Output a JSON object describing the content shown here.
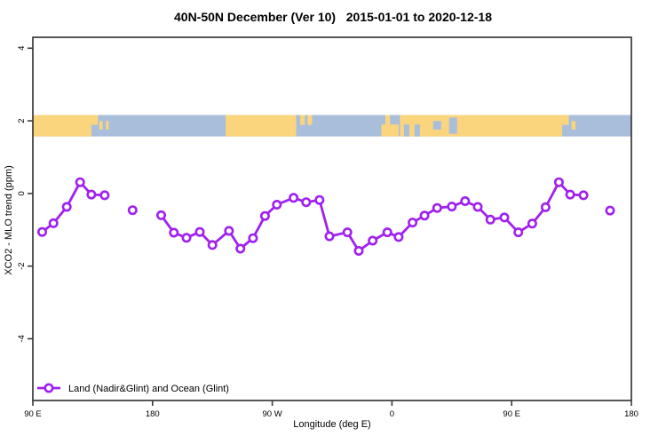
{
  "title": "40N-50N December (Ver 10)   2015-01-01 to 2020-12-18",
  "legend": {
    "label": "Land (Nadir&Glint) and Ocean (Glint)"
  },
  "colors": {
    "line": "#A020F0",
    "marker_fill": "#ffffff",
    "land": "#FAD57E",
    "ocean": "#A9BEDB",
    "axis": "#3a3a3a",
    "text": "#000000"
  },
  "chart_data": {
    "type": "line",
    "title": "40N-50N December (Ver 10)   2015-01-01 to 2020-12-18",
    "xlabel": "Longitude (deg E)",
    "ylabel": "XCO2 - MLO trend (ppm)",
    "xlim": [
      90,
      540
    ],
    "ylim": [
      -5.7,
      4.3
    ],
    "grid": false,
    "legend_position": "bottom-left-inside",
    "x_ticks": [
      {
        "x": 90,
        "label": "90 E"
      },
      {
        "x": 180,
        "label": "180"
      },
      {
        "x": 270,
        "label": "90 W"
      },
      {
        "x": 360,
        "label": "0"
      },
      {
        "x": 450,
        "label": "90 E"
      },
      {
        "x": 540,
        "label": "180"
      }
    ],
    "y_ticks": [
      {
        "y": -4,
        "label": "-4"
      },
      {
        "y": -2,
        "label": "-2"
      },
      {
        "y": 0,
        "label": "0"
      },
      {
        "y": 2,
        "label": "2"
      },
      {
        "y": 4,
        "label": "4"
      }
    ],
    "series": [
      {
        "name": "Land (Nadir&Glint) and Ocean (Glint)",
        "segments": [
          [
            [
              97,
              -1.06
            ],
            [
              105.5,
              -0.82
            ],
            [
              115.5,
              -0.37
            ],
            [
              125.5,
              0.31
            ],
            [
              134,
              -0.03
            ],
            [
              144,
              -0.05
            ]
          ],
          [
            [
              165,
              -0.46
            ]
          ],
          [
            [
              186.5,
              -0.6
            ],
            [
              196,
              -1.08
            ],
            [
              205.5,
              -1.22
            ],
            [
              215.5,
              -1.06
            ],
            [
              225,
              -1.42
            ],
            [
              237.5,
              -1.03
            ],
            [
              246,
              -1.52
            ],
            [
              255.5,
              -1.23
            ],
            [
              264.5,
              -0.62
            ],
            [
              273.5,
              -0.31
            ],
            [
              286,
              -0.12
            ],
            [
              295.5,
              -0.24
            ],
            [
              305.5,
              -0.18
            ],
            [
              313,
              -1.18
            ],
            [
              326.5,
              -1.07
            ],
            [
              335,
              -1.58
            ],
            [
              345.5,
              -1.3
            ],
            [
              356.5,
              -1.07
            ],
            [
              365,
              -1.2
            ],
            [
              375.5,
              -0.8
            ],
            [
              384.5,
              -0.61
            ],
            [
              394,
              -0.4
            ],
            [
              405,
              -0.36
            ],
            [
              415,
              -0.21
            ],
            [
              424.5,
              -0.37
            ],
            [
              434,
              -0.72
            ],
            [
              444.5,
              -0.66
            ],
            [
              455,
              -1.07
            ],
            [
              465.5,
              -0.83
            ],
            [
              475.5,
              -0.38
            ],
            [
              485.5,
              0.31
            ],
            [
              494,
              -0.03
            ],
            [
              504,
              -0.05
            ]
          ],
          [
            [
              524,
              -0.47
            ]
          ]
        ]
      }
    ],
    "map_band": {
      "description": "40N-50N latitude strip world map: land vs ocean along longitude",
      "y_top_ppm": 2.16,
      "y_bottom_ppm": 1.57,
      "base": "ocean",
      "land_spans": [
        {
          "start": 90,
          "end": 134,
          "vpos": "full"
        },
        {
          "start": 134,
          "end": 139,
          "vpos": "top"
        },
        {
          "start": 140,
          "end": 142.5,
          "vpos": "mid"
        },
        {
          "start": 145,
          "end": 147,
          "vpos": "mid"
        },
        {
          "start": 235,
          "end": 288,
          "vpos": "full"
        },
        {
          "start": 291,
          "end": 294.5,
          "vpos": "top"
        },
        {
          "start": 296.5,
          "end": 300,
          "vpos": "top"
        },
        {
          "start": 352,
          "end": 365,
          "vpos": "bottom"
        },
        {
          "start": 355,
          "end": 358.5,
          "vpos": "top"
        },
        {
          "start": 366,
          "end": 488,
          "vpos": "full"
        },
        {
          "start": 488,
          "end": 493,
          "vpos": "top"
        },
        {
          "start": 495,
          "end": 498,
          "vpos": "mid"
        }
      ],
      "ocean_spans": [
        {
          "start": 369,
          "end": 373,
          "vpos": "bottom"
        },
        {
          "start": 377,
          "end": 381,
          "vpos": "bottom"
        },
        {
          "start": 391,
          "end": 397,
          "vpos": "mid"
        },
        {
          "start": 403,
          "end": 409,
          "vpos": "tall"
        }
      ]
    }
  }
}
